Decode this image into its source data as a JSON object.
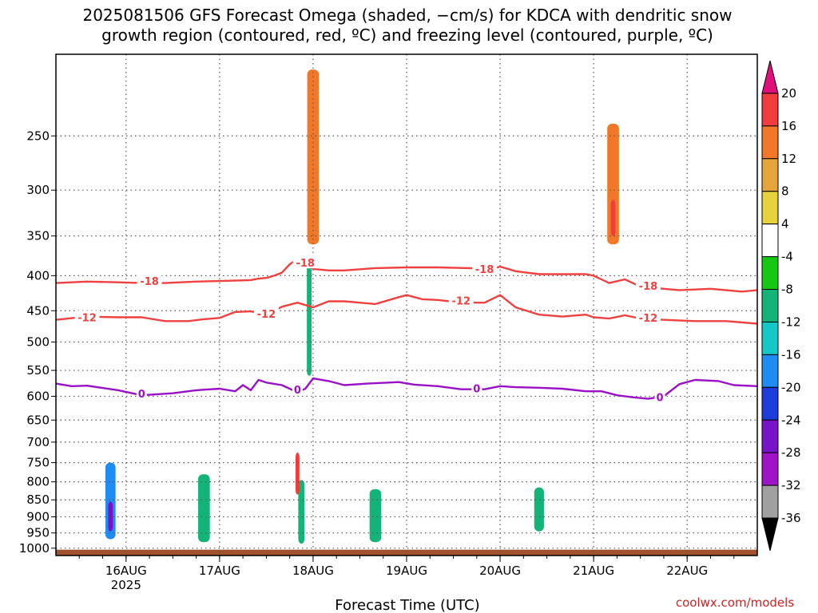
{
  "title_line1": "2025081506 GFS Forecast Omega (shaded, −cm/s) for KDCA with dendritic snow",
  "title_line2": "growth region (contoured, red, ºC) and freezing level (contoured, purple, ºC)",
  "credit": "coolwx.com/models",
  "chart_data": {
    "type": "heatmap",
    "xlabel": "Forecast Time (UTC)",
    "ylabel": "",
    "x_unit": "hours since 2025-08-15 06Z",
    "xlim": [
      0,
      180
    ],
    "y_scale": "log-pressure",
    "ylim": [
      1025,
      190
    ],
    "y_ticks": [
      250,
      300,
      350,
      400,
      450,
      500,
      550,
      600,
      650,
      700,
      750,
      800,
      850,
      900,
      950,
      1000
    ],
    "x_ticks": [
      {
        "hour": 18,
        "label": "16AUG",
        "sublabel": "2025"
      },
      {
        "hour": 42,
        "label": "17AUG",
        "sublabel": ""
      },
      {
        "hour": 66,
        "label": "18AUG",
        "sublabel": ""
      },
      {
        "hour": 90,
        "label": "19AUG",
        "sublabel": ""
      },
      {
        "hour": 114,
        "label": "20AUG",
        "sublabel": ""
      },
      {
        "hour": 138,
        "label": "21AUG",
        "sublabel": ""
      },
      {
        "hour": 162,
        "label": "22AUG",
        "sublabel": ""
      }
    ],
    "grid": true,
    "colorbar": {
      "levels": [
        -36,
        -32,
        -28,
        -24,
        -20,
        -16,
        -12,
        -8,
        -4,
        4,
        8,
        12,
        16,
        20
      ],
      "labels": [
        "20",
        "16",
        "12",
        "8",
        "4",
        "-4",
        "-8",
        "-12",
        "-16",
        "-20",
        "-24",
        "-28",
        "-32",
        "-36"
      ],
      "colors_top_to_bottom": [
        "#e0107a",
        "#f03c3c",
        "#f07828",
        "#e6a53c",
        "#e6d23c",
        "#ffffff",
        "#14c814",
        "#14b478",
        "#14c8c8",
        "#1e8cf0",
        "#1e3cdc",
        "#7814c8",
        "#a014c8",
        "#a0a0a0",
        "#000000"
      ]
    },
    "series": [
      {
        "name": "-18",
        "color": "#f04040",
        "x": [
          0,
          8,
          16,
          22,
          28,
          36,
          44,
          50,
          52,
          54,
          56,
          58,
          60,
          62,
          66,
          70,
          74,
          82,
          90,
          98,
          106,
          112,
          114,
          118,
          124,
          130,
          136,
          138,
          142,
          146,
          150,
          156,
          160,
          168,
          176,
          180
        ],
        "y": [
          410,
          408,
          409,
          410,
          410,
          408,
          407,
          406,
          404,
          403,
          400,
          396,
          385,
          378,
          391,
          393,
          393,
          390,
          389,
          389,
          390,
          391,
          388,
          394,
          398,
          398,
          398,
          400,
          410,
          405,
          415,
          418,
          420,
          418,
          422,
          420
        ]
      },
      {
        "name": "-12",
        "color": "#f04040",
        "x": [
          0,
          8,
          16,
          22,
          28,
          34,
          38,
          42,
          46,
          50,
          54,
          58,
          62,
          66,
          70,
          74,
          78,
          82,
          88,
          90,
          94,
          98,
          104,
          110,
          114,
          118,
          124,
          130,
          136,
          138,
          142,
          146,
          150,
          156,
          164,
          172,
          180
        ],
        "y": [
          464,
          459,
          460,
          460,
          466,
          466,
          463,
          461,
          452,
          451,
          456,
          444,
          438,
          445,
          436,
          436,
          438,
          440,
          430,
          427,
          433,
          434,
          438,
          438,
          427,
          445,
          456,
          459,
          456,
          460,
          462,
          457,
          462,
          464,
          466,
          466,
          470
        ]
      },
      {
        "name": "0",
        "color": "#9a10c8",
        "x": [
          0,
          4,
          8,
          16,
          22,
          30,
          36,
          42,
          46,
          48,
          50,
          52,
          54,
          58,
          62,
          64,
          66,
          70,
          74,
          80,
          88,
          92,
          98,
          104,
          110,
          114,
          118,
          124,
          130,
          136,
          140,
          144,
          148,
          152,
          156,
          160,
          164,
          170,
          174,
          180
        ],
        "y": [
          575,
          580,
          579,
          588,
          598,
          594,
          588,
          585,
          590,
          578,
          588,
          568,
          573,
          578,
          592,
          585,
          565,
          570,
          578,
          575,
          572,
          577,
          580,
          586,
          586,
          580,
          582,
          583,
          585,
          590,
          590,
          598,
          602,
          605,
          600,
          576,
          568,
          570,
          578,
          580
        ]
      }
    ],
    "contour_labels": [
      {
        "text": "-18",
        "hour": 24,
        "p": 408
      },
      {
        "text": "-18",
        "hour": 64,
        "p": 384
      },
      {
        "text": "-18",
        "hour": 110,
        "p": 392
      },
      {
        "text": "-18",
        "hour": 152,
        "p": 415
      },
      {
        "text": "-12",
        "hour": 8,
        "p": 461
      },
      {
        "text": "-12",
        "hour": 54,
        "p": 456
      },
      {
        "text": "-12",
        "hour": 104,
        "p": 436
      },
      {
        "text": "-12",
        "hour": 152,
        "p": 462
      },
      {
        "text": "0",
        "hour": 22,
        "p": 596
      },
      {
        "text": "0",
        "hour": 62,
        "p": 588
      },
      {
        "text": "0",
        "hour": 108,
        "p": 586
      },
      {
        "text": "0",
        "hour": 155,
        "p": 603
      }
    ],
    "shaded_cells": [
      {
        "hour": 14,
        "p": 860,
        "w": 2.6,
        "dp": 220,
        "value": -20
      },
      {
        "hour": 14,
        "p": 900,
        "w": 1.2,
        "dp": 90,
        "value": -28
      },
      {
        "hour": 38,
        "p": 880,
        "w": 3,
        "dp": 200,
        "value": -12
      },
      {
        "hour": 63,
        "p": 890,
        "w": 1.6,
        "dp": 190,
        "value": -12
      },
      {
        "hour": 62,
        "p": 780,
        "w": 1,
        "dp": 110,
        "value": 16
      },
      {
        "hour": 65,
        "p": 470,
        "w": 1.2,
        "dp": 180,
        "value": -12
      },
      {
        "hour": 82,
        "p": 900,
        "w": 3,
        "dp": 160,
        "value": -12
      },
      {
        "hour": 124,
        "p": 880,
        "w": 2.5,
        "dp": 130,
        "value": -12
      },
      {
        "hour": 66,
        "p": 280,
        "w": 3,
        "dp": 160,
        "value": 12
      },
      {
        "hour": 143,
        "p": 300,
        "w": 3,
        "dp": 120,
        "value": 12
      },
      {
        "hour": 143,
        "p": 330,
        "w": 1.2,
        "dp": 40,
        "value": 16
      }
    ]
  }
}
